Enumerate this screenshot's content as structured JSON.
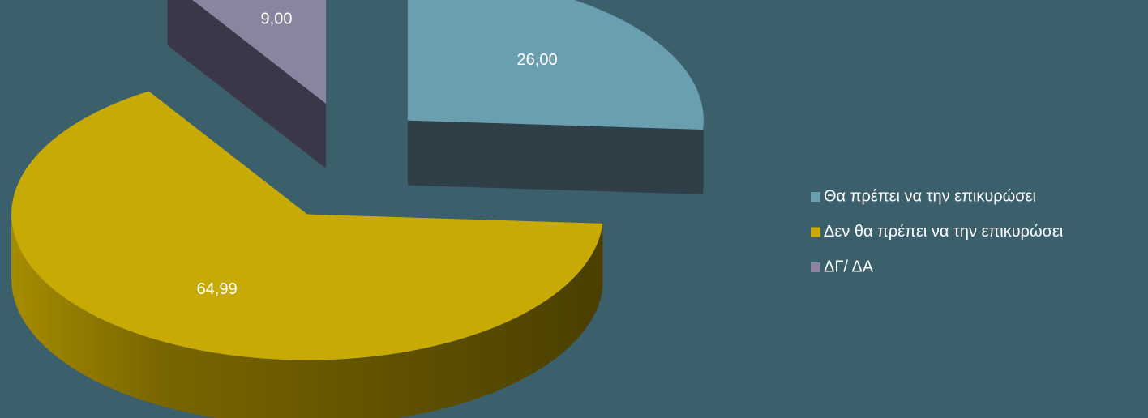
{
  "chart_data": {
    "type": "pie",
    "categories": [
      "Θα πρέπει να την επικυρώσει",
      "Δεν θα πρέπει να την επικυρώσει",
      "ΔΓ/ ΔΑ"
    ],
    "values": [
      26,
      64.99,
      9
    ],
    "value_labels": [
      "26,00",
      "64,99",
      "9,00"
    ],
    "colors": [
      "#6a9fb0",
      "#c8aa05",
      "#8a84a0"
    ],
    "legend": "right"
  }
}
